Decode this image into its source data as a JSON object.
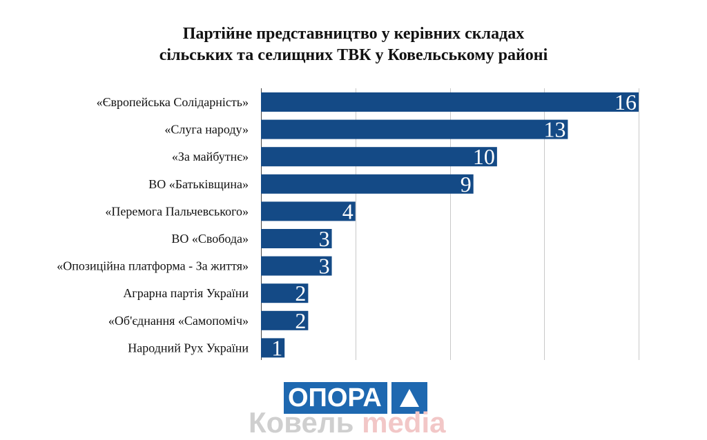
{
  "chart_data": {
    "type": "bar",
    "orientation": "horizontal",
    "title_lines": [
      "Партійне представництво у керівних складах",
      "сільських та селищних ТВК у Ковельському районі"
    ],
    "categories": [
      "«Європейська Солідарність»",
      "«Слуга народу»",
      "«За майбутнє»",
      "ВО «Батьківщина»",
      "«Перемога Пальчевського»",
      "ВО «Свобода»",
      "«Опозиційна платформа - За життя»",
      "Аграрна партія України",
      "«Об'єднання «Самопоміч»",
      "Народний Рух України"
    ],
    "values": [
      16,
      13,
      10,
      9,
      4,
      3,
      3,
      2,
      2,
      1
    ],
    "xlim": [
      0,
      16
    ],
    "x_gridlines": [
      0,
      4,
      8,
      12,
      16
    ],
    "grid": true,
    "legend": "none",
    "bar_color": "#144a86",
    "value_label_color": "#ffffff"
  },
  "logo": {
    "word": "ОПОРА",
    "color": "#1e68b0",
    "icon": "triangle-up-icon"
  },
  "watermark": {
    "part1": "Ковель",
    "part2": "media"
  }
}
